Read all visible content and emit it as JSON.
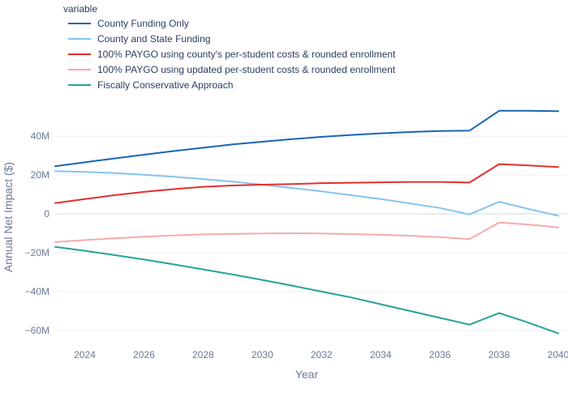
{
  "chart_data": {
    "type": "line",
    "title": "",
    "xlabel": "Year",
    "ylabel": "Annual Net Impact ($)",
    "legend_title": "variable",
    "legend_position": "top-left",
    "grid": true,
    "xlim": [
      2023,
      2040
    ],
    "ylim": [
      -70000000,
      60000000
    ],
    "x_ticks": [
      2024,
      2026,
      2028,
      2030,
      2032,
      2034,
      2036,
      2038,
      2040
    ],
    "x_tick_labels": [
      "2024",
      "2026",
      "2028",
      "2030",
      "2032",
      "2034",
      "2036",
      "2038",
      "2040"
    ],
    "y_ticks": [
      -60000000,
      -40000000,
      -20000000,
      0,
      20000000,
      40000000
    ],
    "y_tick_labels": [
      "−60M",
      "−40M",
      "−20M",
      "0",
      "20M",
      "40M"
    ],
    "x": [
      2023,
      2024,
      2025,
      2026,
      2027,
      2028,
      2029,
      2030,
      2031,
      2032,
      2033,
      2034,
      2035,
      2036,
      2037,
      2038,
      2039,
      2040
    ],
    "series": [
      {
        "name": "County Funding Only",
        "color": "#1a64b4",
        "values": [
          24500000,
          26500000,
          28500000,
          30400000,
          32300000,
          34000000,
          35700000,
          37100000,
          38400000,
          39600000,
          40600000,
          41400000,
          42100000,
          42600000,
          42800000,
          53000000,
          53000000,
          52800000
        ]
      },
      {
        "name": "County and State Funding",
        "color": "#85c4ef",
        "values": [
          22000000,
          21600000,
          21000000,
          20100000,
          19100000,
          17900000,
          16600000,
          15000000,
          13300000,
          11600000,
          9600000,
          7600000,
          5300000,
          3000000,
          -300000,
          6200000,
          2500000,
          -1000000
        ]
      },
      {
        "name": "100% PAYGO using county's per-student costs & rounded enrollment",
        "color": "#e0302e",
        "values": [
          5500000,
          7600000,
          9600000,
          11300000,
          12700000,
          13900000,
          14600000,
          15000000,
          15300000,
          15800000,
          16000000,
          16200000,
          16400000,
          16400000,
          16100000,
          25600000,
          24900000,
          24100000
        ]
      },
      {
        "name": "100% PAYGO using updated per-student costs & rounded enrollment",
        "color": "#f5aaaa",
        "values": [
          -14500000,
          -13500000,
          -12600000,
          -11800000,
          -11100000,
          -10600000,
          -10300000,
          -10100000,
          -10000000,
          -10100000,
          -10400000,
          -10800000,
          -11300000,
          -12000000,
          -13000000,
          -4500000,
          -5500000,
          -7000000
        ]
      },
      {
        "name": "Fiscally Conservative Approach",
        "color": "#25a494",
        "values": [
          -17000000,
          -19000000,
          -21200000,
          -23500000,
          -26000000,
          -28600000,
          -31200000,
          -34000000,
          -36900000,
          -40000000,
          -43000000,
          -46500000,
          -50000000,
          -53500000,
          -57000000,
          -51000000,
          -56000000,
          -61500000
        ]
      }
    ]
  }
}
